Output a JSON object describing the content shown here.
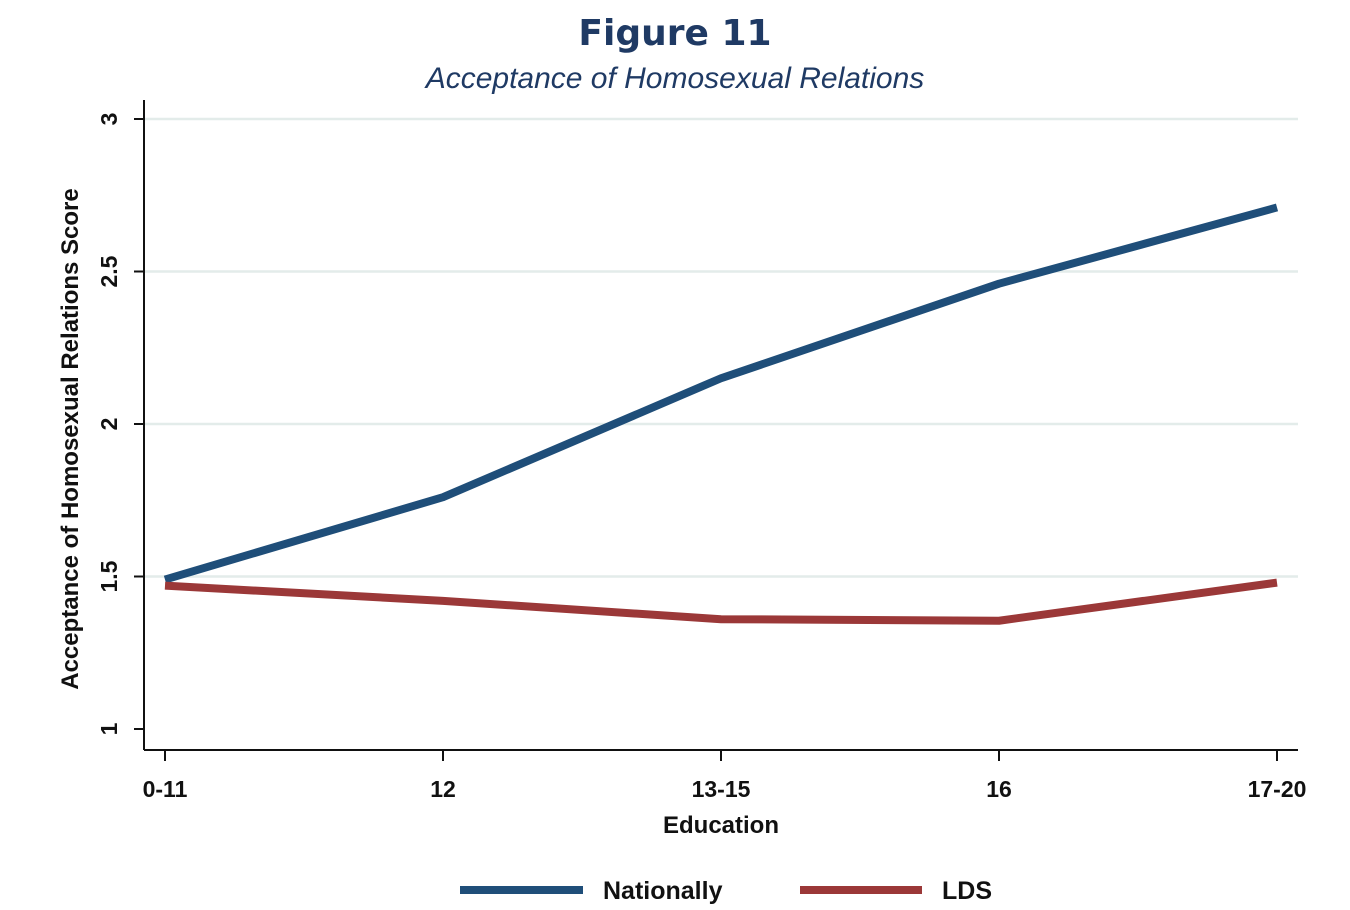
{
  "figure": {
    "title": "Figure 11",
    "subtitle": "Acceptance of Homosexual Relations"
  },
  "chart_data": {
    "type": "line",
    "title": "Figure 11",
    "subtitle": "Acceptance of Homosexual Relations",
    "xlabel": "Education",
    "ylabel": "Acceptance of Homosexual Relations Score",
    "categories": [
      "0-11",
      "12",
      "13-15",
      "16",
      "17-20"
    ],
    "ylim": [
      1,
      3
    ],
    "yticks": [
      1,
      1.5,
      2,
      2.5,
      3
    ],
    "ytick_labels": [
      "1",
      "1.5",
      "2",
      "2.5",
      "3"
    ],
    "grid": "horizontal",
    "legend_position": "bottom",
    "series": [
      {
        "name": "Nationally",
        "color": "#1f4e79",
        "values": [
          1.49,
          1.76,
          2.15,
          2.46,
          2.71
        ]
      },
      {
        "name": "LDS",
        "color": "#9b3838",
        "values": [
          1.47,
          1.42,
          1.36,
          1.355,
          1.48
        ]
      }
    ]
  }
}
